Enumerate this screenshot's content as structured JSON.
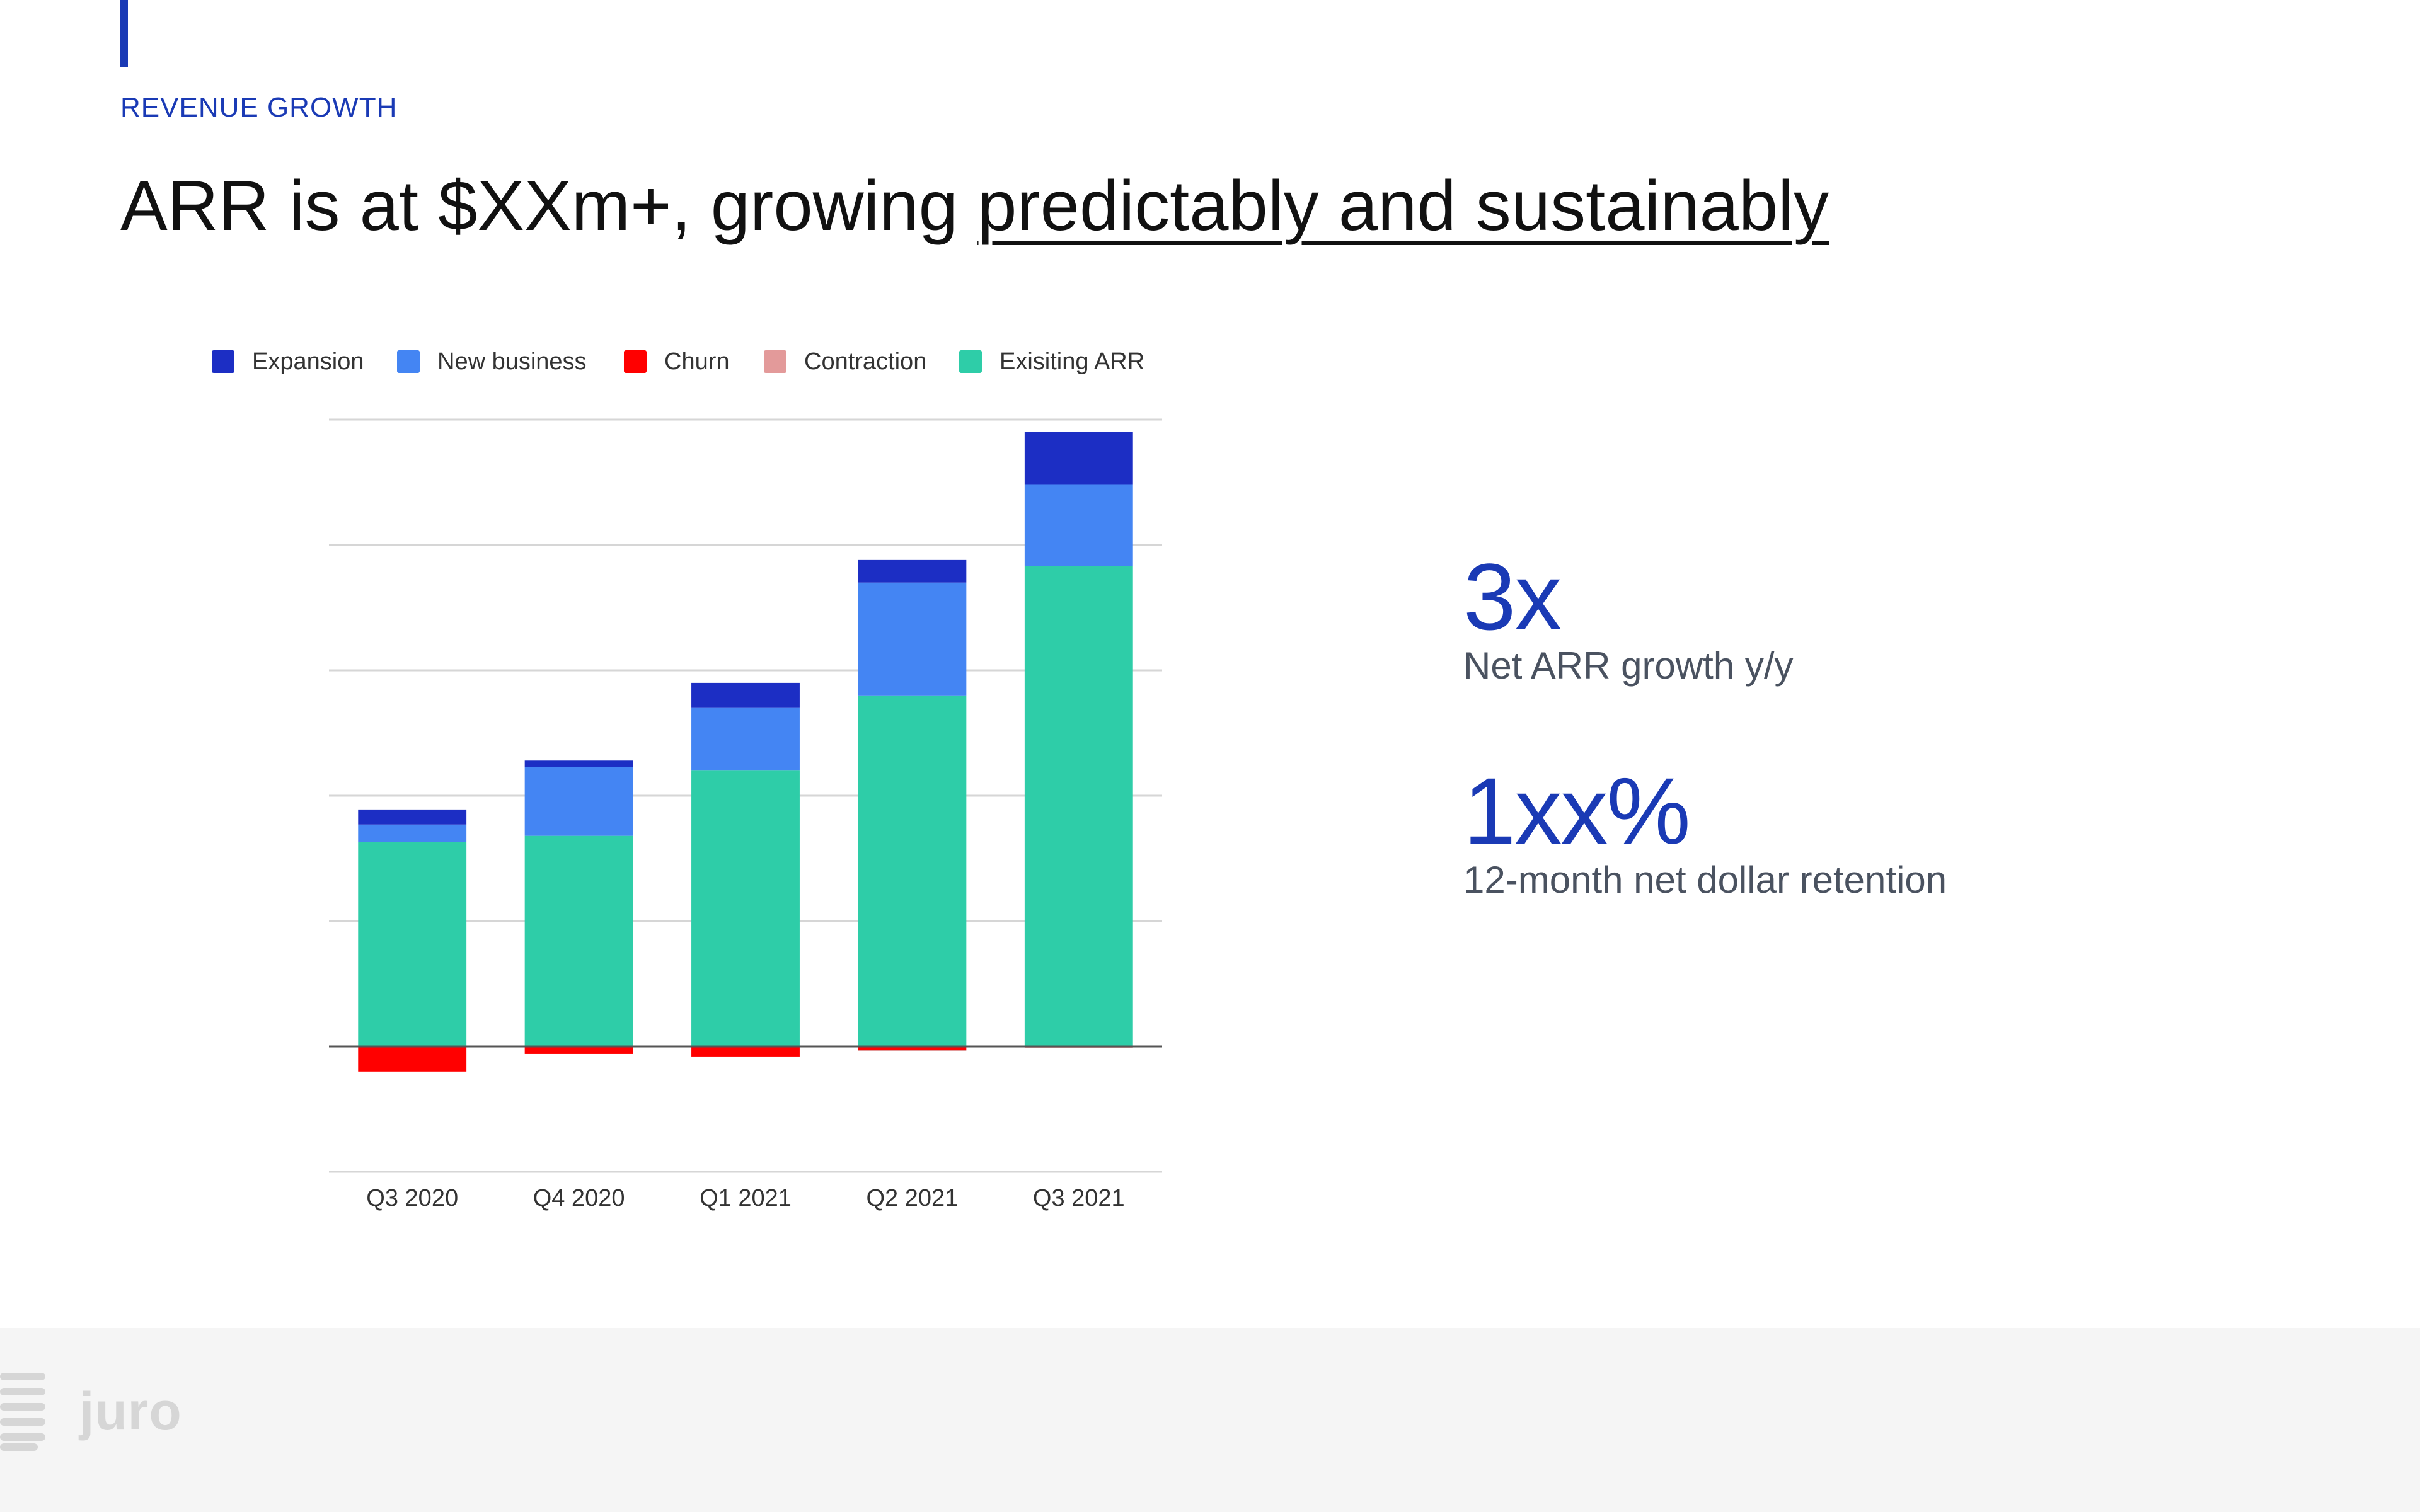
{
  "slide": {
    "eyebrow": "REVENUE GROWTH",
    "title_prefix": "ARR is at $XXm+, growing ",
    "title_emphasis": "predictably and sustainably"
  },
  "stats": [
    {
      "value": "3x",
      "label": "Net ARR growth y/y"
    },
    {
      "value": "1xx%",
      "label": "12-month net dollar retention"
    }
  ],
  "footer": {
    "brand": "juro"
  },
  "colors": {
    "accent": "#1a3ab5",
    "expansion": "#1c2ec4",
    "new_business": "#4485f3",
    "churn": "#ff0000",
    "contraction": "#e39a9a",
    "existing_arr": "#2ecda8"
  },
  "chart_data": {
    "type": "bar",
    "stacked": true,
    "title": "",
    "xlabel": "",
    "ylabel": "",
    "grid": true,
    "legend_position": "top",
    "ylim": [
      -1,
      5
    ],
    "categories": [
      "Q3 2020",
      "Q4 2020",
      "Q1 2021",
      "Q2 2021",
      "Q3 2021"
    ],
    "series": [
      {
        "name": "Expansion",
        "color_key": "expansion",
        "values": [
          0.12,
          0.05,
          0.2,
          0.18,
          0.42
        ]
      },
      {
        "name": "New business",
        "color_key": "new_business",
        "values": [
          0.14,
          0.55,
          0.5,
          0.9,
          0.65
        ]
      },
      {
        "name": "Churn",
        "color_key": "churn",
        "values": [
          -0.2,
          -0.06,
          -0.08,
          -0.03,
          0
        ]
      },
      {
        "name": "Contraction",
        "color_key": "contraction",
        "values": [
          0,
          0,
          0,
          -0.01,
          -0.01
        ]
      },
      {
        "name": "Exisiting ARR",
        "color_key": "existing_arr",
        "values": [
          1.63,
          1.68,
          2.2,
          2.8,
          3.83
        ]
      }
    ]
  }
}
